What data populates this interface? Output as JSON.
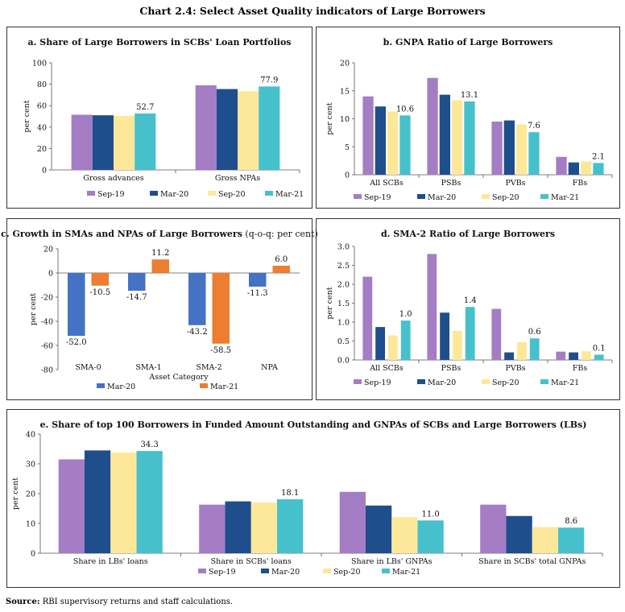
{
  "page_title": "Chart 2.4: Select Asset Quality indicators of Large Borrowers",
  "source_label": "Source:",
  "source_text": "RBI supervisory returns and staff calculations.",
  "colors": {
    "Sep-19": "#a57dc4",
    "Mar-20": "#1f4e8c",
    "Sep-20": "#fde89a",
    "Mar-21": "#46c1cc",
    "Mar-20-blue": "#4472c4",
    "Mar-21-orange": "#ed7d31"
  },
  "chart_data": [
    {
      "id": "a",
      "type": "bar",
      "title": "a. Share of Large Borrowers in SCBs' Loan Portfolios",
      "ylabel": "per cent",
      "xlabel": "",
      "ylim": [
        0,
        100
      ],
      "yticks": [
        0,
        20,
        40,
        60,
        80,
        100
      ],
      "categories": [
        "Gross advances",
        "Gross NPAs"
      ],
      "series": [
        {
          "name": "Sep-19",
          "values": [
            51.5,
            79.0
          ]
        },
        {
          "name": "Mar-20",
          "values": [
            51.0,
            75.5
          ]
        },
        {
          "name": "Sep-20",
          "values": [
            50.5,
            73.5
          ]
        },
        {
          "name": "Mar-21",
          "values": [
            52.7,
            77.9
          ]
        }
      ],
      "labels": [
        {
          "series": 3,
          "cat": 0,
          "text": "52.7"
        },
        {
          "series": 3,
          "cat": 1,
          "text": "77.9"
        }
      ]
    },
    {
      "id": "b",
      "type": "bar",
      "title": "b. GNPA Ratio of Large Borrowers",
      "ylabel": "per cent",
      "xlabel": "",
      "ylim": [
        0,
        20
      ],
      "yticks": [
        0,
        5,
        10,
        15,
        20
      ],
      "categories": [
        "All SCBs",
        "PSBs",
        "PVBs",
        "FBs"
      ],
      "series": [
        {
          "name": "Sep-19",
          "values": [
            14.0,
            17.3,
            9.5,
            3.2
          ]
        },
        {
          "name": "Mar-20",
          "values": [
            12.2,
            14.3,
            9.7,
            2.2
          ]
        },
        {
          "name": "Sep-20",
          "values": [
            11.3,
            13.3,
            9.0,
            2.4
          ]
        },
        {
          "name": "Mar-21",
          "values": [
            10.6,
            13.1,
            7.6,
            2.1
          ]
        }
      ],
      "labels": [
        {
          "series": 3,
          "cat": 0,
          "text": "10.6"
        },
        {
          "series": 3,
          "cat": 1,
          "text": "13.1"
        },
        {
          "series": 3,
          "cat": 2,
          "text": "7.6"
        },
        {
          "series": 3,
          "cat": 3,
          "text": "2.1"
        }
      ]
    },
    {
      "id": "c",
      "type": "bar",
      "title": "c. Growth in SMAs and NPAs of Large Borrowers",
      "title_note": "(q-o-q: per cent)",
      "ylabel": "per cent",
      "xlabel": "Asset Category",
      "ylim": [
        -80,
        20
      ],
      "yticks": [
        -80,
        -60,
        -40,
        -20,
        0,
        20
      ],
      "categories": [
        "SMA-0",
        "SMA-1",
        "SMA-2",
        "NPA"
      ],
      "series": [
        {
          "name": "Mar-20",
          "values": [
            -52.0,
            -14.7,
            -43.2,
            -11.3
          ]
        },
        {
          "name": "Mar-21",
          "values": [
            -10.5,
            11.2,
            -58.5,
            6.0
          ]
        }
      ],
      "labels": [
        {
          "series": 0,
          "cat": 0,
          "text": "-52.0"
        },
        {
          "series": 1,
          "cat": 0,
          "text": "-10.5"
        },
        {
          "series": 0,
          "cat": 1,
          "text": "-14.7"
        },
        {
          "series": 1,
          "cat": 1,
          "text": "11.2"
        },
        {
          "series": 0,
          "cat": 2,
          "text": "-43.2"
        },
        {
          "series": 1,
          "cat": 2,
          "text": "-58.5"
        },
        {
          "series": 0,
          "cat": 3,
          "text": "-11.3"
        },
        {
          "series": 1,
          "cat": 3,
          "text": "6.0"
        }
      ]
    },
    {
      "id": "d",
      "type": "bar",
      "title": "d. SMA-2 Ratio of Large Borrowers",
      "ylabel": "per cent",
      "xlabel": "",
      "ylim": [
        0,
        3.0
      ],
      "yticks": [
        "0.0",
        "0.5",
        "1.0",
        "1.5",
        "2.0",
        "2.5",
        "3.0"
      ],
      "categories": [
        "All SCBs",
        "PSBs",
        "PVBs",
        "FBs"
      ],
      "series": [
        {
          "name": "Sep-19",
          "values": [
            2.2,
            2.8,
            1.35,
            0.22
          ]
        },
        {
          "name": "Mar-20",
          "values": [
            0.87,
            1.25,
            0.2,
            0.2
          ]
        },
        {
          "name": "Sep-20",
          "values": [
            0.65,
            0.77,
            0.47,
            0.23
          ]
        },
        {
          "name": "Mar-21",
          "values": [
            1.04,
            1.4,
            0.57,
            0.14
          ]
        }
      ],
      "labels": [
        {
          "series": 3,
          "cat": 0,
          "text": "1.0"
        },
        {
          "series": 3,
          "cat": 1,
          "text": "1.4"
        },
        {
          "series": 3,
          "cat": 2,
          "text": "0.6"
        },
        {
          "series": 3,
          "cat": 3,
          "text": "0.1"
        }
      ]
    },
    {
      "id": "e",
      "type": "bar",
      "title": "e. Share of top 100 Borrowers in Funded Amount Outstanding and GNPAs of SCBs and Large Borrowers (LBs)",
      "ylabel": "per cent",
      "xlabel": "",
      "ylim": [
        0,
        40
      ],
      "yticks": [
        0,
        10,
        20,
        30,
        40
      ],
      "categories": [
        "Share in LBs' loans",
        "Share in SCBs' loans",
        "Share in LBs' GNPAs",
        "Share in SCBs' total GNPAs"
      ],
      "series": [
        {
          "name": "Sep-19",
          "values": [
            31.5,
            16.3,
            20.6,
            16.3
          ]
        },
        {
          "name": "Mar-20",
          "values": [
            34.5,
            17.4,
            16.0,
            12.5
          ]
        },
        {
          "name": "Sep-20",
          "values": [
            33.8,
            17.0,
            12.1,
            8.8
          ]
        },
        {
          "name": "Mar-21",
          "values": [
            34.3,
            18.1,
            11.0,
            8.6
          ]
        }
      ],
      "labels": [
        {
          "series": 3,
          "cat": 0,
          "text": "34.3"
        },
        {
          "series": 3,
          "cat": 1,
          "text": "18.1"
        },
        {
          "series": 3,
          "cat": 2,
          "text": "11.0"
        },
        {
          "series": 3,
          "cat": 3,
          "text": "8.6"
        }
      ]
    }
  ]
}
